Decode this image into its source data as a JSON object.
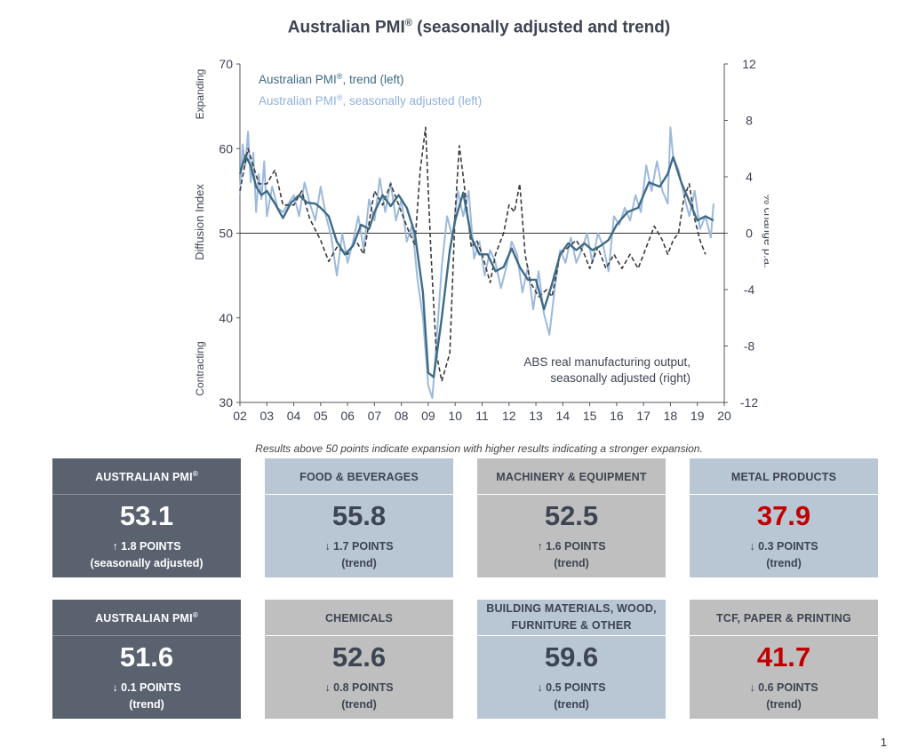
{
  "title": {
    "text": "Australian PMI",
    "sup": "®",
    "suffix": " (seasonally adjusted and trend)"
  },
  "note": "Results above 50 points indicate expansion with higher results indicating a stronger expansion.",
  "page_number": "1",
  "cards_row1": [
    {
      "name": "AUSTRALIAN PMI",
      "sup": "®",
      "value": "53.1",
      "change": "↑ 1.8 POINTS",
      "basis": "(seasonally adjusted)",
      "style": "dark",
      "value_color": ""
    },
    {
      "name": "FOOD & BEVERAGES",
      "sup": "",
      "value": "55.8",
      "change": "↓ 1.7 POINTS",
      "basis": "(trend)",
      "style": "blue",
      "value_color": ""
    },
    {
      "name": "MACHINERY & EQUIPMENT",
      "sup": "",
      "value": "52.5",
      "change": "↑ 1.6 POINTS",
      "basis": "(trend)",
      "style": "grey",
      "value_color": ""
    },
    {
      "name": "METAL PRODUCTS",
      "sup": "",
      "value": "37.9",
      "change": "↓ 0.3 POINTS",
      "basis": "(trend)",
      "style": "blue",
      "value_color": "#c00000"
    }
  ],
  "cards_row2": [
    {
      "name": "AUSTRALIAN PMI",
      "sup": "®",
      "value": "51.6",
      "change": "↓ 0.1 POINTS",
      "basis": "(trend)",
      "style": "dark",
      "value_color": ""
    },
    {
      "name": "CHEMICALS",
      "sup": "",
      "value": "52.6",
      "change": "↓ 0.8 POINTS",
      "basis": "(trend)",
      "style": "grey",
      "value_color": ""
    },
    {
      "name": "BUILDING MATERIALS, WOOD, FURNITURE & OTHER",
      "sup": "",
      "value": "59.6",
      "change": "↓ 0.5 POINTS",
      "basis": "(trend)",
      "style": "blue",
      "value_color": ""
    },
    {
      "name": "TCF, PAPER & PRINTING",
      "sup": "",
      "value": "41.7",
      "change": "↓ 0.6 POINTS",
      "basis": "(trend)",
      "style": "grey",
      "value_color": "#c00000"
    }
  ],
  "chart_data": {
    "type": "line",
    "xlabel": "",
    "ylabel_left": "Diffusion Index",
    "ylabel_right": "% change p.a.",
    "y_top_label": "Expanding",
    "y_bottom_label": "Contracting",
    "xlim": [
      2002,
      2020
    ],
    "ylim_left": [
      30,
      70
    ],
    "ylim_right": [
      -12,
      12
    ],
    "x_ticks": [
      "02",
      "03",
      "04",
      "05",
      "06",
      "07",
      "08",
      "09",
      "10",
      "11",
      "12",
      "13",
      "14",
      "15",
      "16",
      "17",
      "18",
      "19",
      "20"
    ],
    "y_ticks_left": [
      "30",
      "40",
      "50",
      "60",
      "70"
    ],
    "y_ticks_right": [
      "-12",
      "-8",
      "-4",
      "0",
      "4",
      "8",
      "12"
    ],
    "reference_line": 50,
    "legend_position": "top-left",
    "annotation": [
      "ABS real manufacturing output,",
      "seasonally adjusted (right)"
    ],
    "colors": {
      "trend": "#3e6b85",
      "sa": "#9db9dc",
      "abs": "#3a3a3a"
    },
    "series": [
      {
        "name": "Australian PMI®, trend (left)",
        "axis": "left",
        "style": "solid",
        "x": [
          2002.0,
          2002.2,
          2002.4,
          2002.6,
          2002.8,
          2003.0,
          2003.3,
          2003.6,
          2003.9,
          2004.2,
          2004.5,
          2004.8,
          2005.0,
          2005.3,
          2005.6,
          2005.9,
          2006.2,
          2006.5,
          2006.8,
          2007.0,
          2007.3,
          2007.6,
          2007.9,
          2008.2,
          2008.5,
          2008.8,
          2009.0,
          2009.2,
          2009.5,
          2009.8,
          2010.0,
          2010.3,
          2010.6,
          2010.9,
          2011.2,
          2011.5,
          2011.8,
          2012.1,
          2012.4,
          2012.7,
          2013.0,
          2013.3,
          2013.6,
          2013.9,
          2014.2,
          2014.5,
          2014.8,
          2015.1,
          2015.4,
          2015.7,
          2016.0,
          2016.4,
          2016.8,
          2017.2,
          2017.6,
          2017.9,
          2018.1,
          2018.4,
          2018.7,
          2019.0,
          2019.3,
          2019.6
        ],
        "values": [
          57.0,
          59.2,
          58.0,
          55.5,
          54.5,
          55.0,
          53.5,
          51.8,
          53.6,
          54.5,
          53.6,
          53.5,
          53.0,
          52.0,
          49.0,
          47.5,
          48.5,
          51.0,
          50.5,
          52.5,
          54.5,
          53.2,
          54.5,
          53.0,
          50.0,
          43.0,
          33.5,
          33.0,
          40.0,
          48.0,
          51.5,
          54.8,
          49.5,
          47.5,
          47.5,
          45.5,
          46.0,
          48.2,
          46.0,
          44.5,
          44.5,
          41.0,
          44.0,
          47.5,
          48.8,
          48.0,
          48.8,
          48.0,
          48.5,
          49.2,
          51.0,
          52.5,
          53.0,
          56.0,
          55.5,
          57.0,
          59.0,
          56.0,
          53.8,
          51.5,
          52.0,
          51.5
        ]
      },
      {
        "name": "Australian PMI®, seasonally adjusted (left)",
        "axis": "left",
        "style": "solid",
        "x": [
          2002.0,
          2002.1,
          2002.2,
          2002.3,
          2002.4,
          2002.5,
          2002.6,
          2002.7,
          2002.8,
          2002.9,
          2003.0,
          2003.2,
          2003.4,
          2003.6,
          2003.8,
          2004.0,
          2004.2,
          2004.4,
          2004.6,
          2004.8,
          2005.0,
          2005.2,
          2005.4,
          2005.6,
          2005.8,
          2006.0,
          2006.2,
          2006.4,
          2006.6,
          2006.8,
          2007.0,
          2007.2,
          2007.4,
          2007.6,
          2007.8,
          2008.0,
          2008.2,
          2008.4,
          2008.6,
          2008.8,
          2009.0,
          2009.15,
          2009.3,
          2009.5,
          2009.7,
          2009.9,
          2010.1,
          2010.3,
          2010.5,
          2010.7,
          2010.9,
          2011.1,
          2011.3,
          2011.5,
          2011.7,
          2011.9,
          2012.1,
          2012.3,
          2012.5,
          2012.7,
          2012.9,
          2013.1,
          2013.3,
          2013.5,
          2013.7,
          2013.9,
          2014.1,
          2014.3,
          2014.5,
          2014.7,
          2014.9,
          2015.1,
          2015.3,
          2015.5,
          2015.7,
          2015.9,
          2016.1,
          2016.3,
          2016.5,
          2016.7,
          2016.9,
          2017.1,
          2017.3,
          2017.5,
          2017.7,
          2017.9,
          2018.0,
          2018.1,
          2018.3,
          2018.5,
          2018.7,
          2018.9,
          2019.1,
          2019.3,
          2019.5,
          2019.6
        ],
        "values": [
          54.5,
          60.5,
          58.0,
          62.0,
          56.0,
          59.5,
          52.5,
          57.0,
          54.0,
          58.5,
          52.0,
          55.5,
          53.0,
          52.5,
          53.5,
          54.5,
          52.0,
          56.0,
          53.5,
          51.5,
          55.5,
          52.0,
          49.5,
          45.0,
          50.0,
          46.5,
          49.0,
          52.0,
          48.0,
          54.0,
          51.5,
          56.5,
          52.5,
          56.0,
          51.5,
          54.0,
          49.0,
          51.0,
          44.5,
          40.0,
          32.0,
          30.5,
          37.0,
          46.0,
          52.0,
          49.5,
          55.0,
          52.0,
          55.0,
          47.0,
          49.0,
          45.0,
          48.0,
          46.5,
          43.5,
          46.0,
          49.0,
          47.5,
          43.0,
          46.0,
          41.0,
          45.5,
          40.5,
          38.0,
          43.5,
          48.0,
          46.5,
          49.5,
          46.5,
          48.0,
          50.0,
          46.5,
          50.0,
          48.5,
          45.5,
          52.0,
          51.0,
          53.0,
          51.5,
          54.5,
          52.5,
          58.0,
          55.0,
          58.5,
          55.0,
          53.5,
          62.5,
          59.0,
          57.5,
          54.5,
          52.0,
          55.0,
          50.5,
          52.0,
          49.5,
          53.5
        ]
      },
      {
        "name": "ABS real manufacturing output, seasonally adjusted (right)",
        "axis": "right",
        "style": "dashed",
        "x": [
          2002.0,
          2002.3,
          2002.7,
          2003.0,
          2003.3,
          2003.6,
          2004.0,
          2004.3,
          2004.6,
          2005.0,
          2005.3,
          2005.6,
          2006.0,
          2006.3,
          2006.6,
          2007.0,
          2007.3,
          2007.6,
          2008.0,
          2008.3,
          2008.5,
          2008.7,
          2008.9,
          2009.1,
          2009.3,
          2009.5,
          2009.8,
          2010.0,
          2010.15,
          2010.3,
          2010.6,
          2010.8,
          2011.0,
          2011.3,
          2011.5,
          2011.8,
          2012.0,
          2012.2,
          2012.4,
          2012.6,
          2012.8,
          2013.1,
          2013.4,
          2013.6,
          2013.9,
          2014.2,
          2014.5,
          2014.8,
          2015.0,
          2015.3,
          2015.6,
          2015.9,
          2016.2,
          2016.5,
          2016.8,
          2017.1,
          2017.4,
          2017.7,
          2017.9,
          2018.1,
          2018.3,
          2018.5,
          2018.7,
          2018.9,
          2019.1,
          2019.3
        ],
        "values": [
          3.0,
          6.0,
          3.5,
          3.5,
          4.5,
          2.0,
          2.0,
          3.0,
          1.0,
          -0.5,
          -2.0,
          -1.0,
          -1.5,
          -0.5,
          -1.5,
          3.0,
          2.0,
          3.5,
          1.5,
          0.0,
          -0.8,
          4.5,
          7.5,
          -1.5,
          -8.5,
          -10.5,
          -8.5,
          1.5,
          6.2,
          4.0,
          -1.0,
          -0.5,
          -1.5,
          -3.5,
          -1.5,
          0.0,
          2.0,
          1.5,
          3.5,
          -1.5,
          -3.5,
          -4.5,
          -4.0,
          -4.5,
          -1.5,
          -1.0,
          -0.5,
          -1.5,
          -2.5,
          -1.0,
          -2.5,
          -1.5,
          -2.5,
          -1.5,
          -2.5,
          -1.0,
          0.5,
          -0.5,
          -1.5,
          -0.5,
          0.0,
          2.5,
          3.5,
          1.0,
          -0.5,
          -1.5
        ]
      }
    ]
  }
}
